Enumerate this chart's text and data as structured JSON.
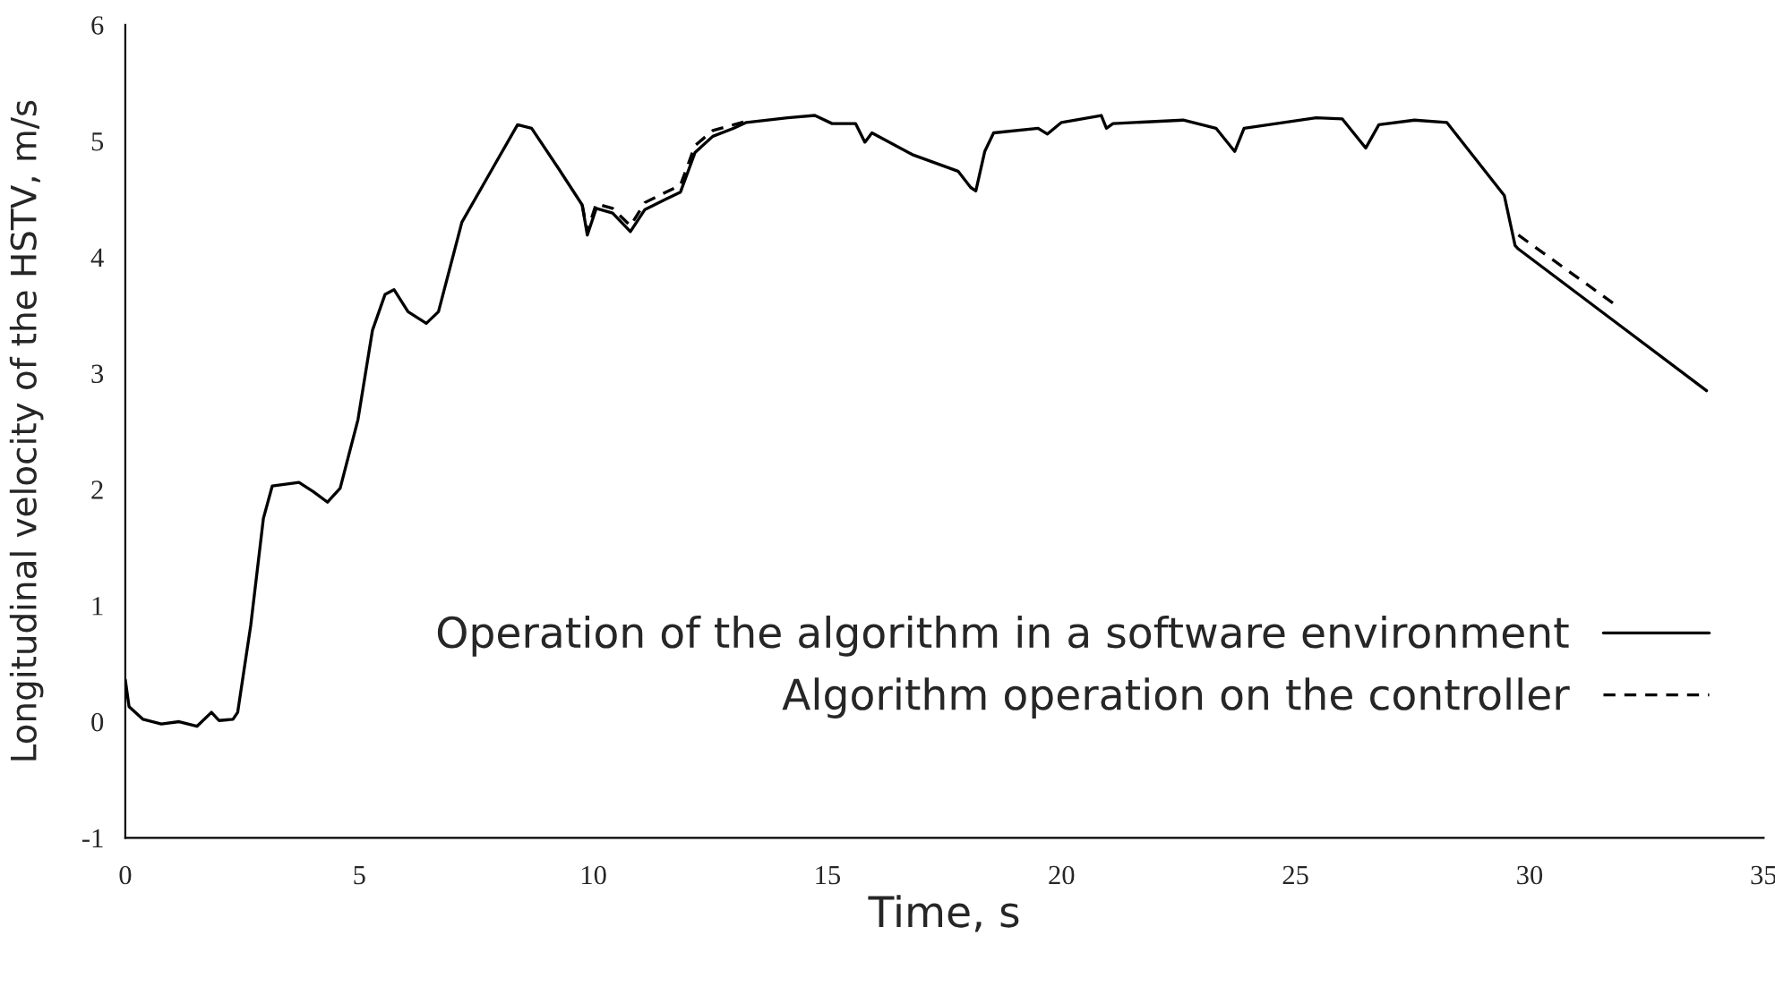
{
  "chart_data": {
    "type": "line",
    "xlabel": "Time, s",
    "ylabel": "Longitudinal velocity of the HSTV, m/s",
    "xlim": [
      0,
      35
    ],
    "xticks": [
      0,
      5,
      10,
      15,
      20,
      25,
      30,
      35
    ],
    "ylim": [
      -1,
      6
    ],
    "yticks": [
      -1,
      0,
      1,
      2,
      3,
      4,
      5,
      6
    ],
    "grid": false,
    "legend": "bottom right",
    "marker": "none",
    "series": [
      {
        "name": "Operation of the algorithm in a software environment",
        "color": "#000000",
        "line_style": "solid",
        "x": [
          0,
          0.08,
          0.38,
          0.77,
          1.15,
          1.53,
          1.84,
          2.0,
          2.3,
          2.4,
          2.68,
          2.95,
          3.14,
          3.71,
          4.02,
          4.32,
          4.59,
          4.97,
          5.28,
          5.55,
          5.74,
          6.04,
          6.43,
          6.69,
          7.19,
          7.84,
          8.38,
          8.68,
          9.26,
          9.76,
          9.87,
          10.06,
          10.41,
          10.79,
          11.1,
          11.55,
          11.86,
          12.17,
          12.55,
          13.0,
          13.27,
          14.15,
          14.73,
          15.1,
          15.6,
          15.8,
          15.95,
          16.83,
          17.79,
          18.06,
          18.17,
          18.36,
          18.55,
          19.5,
          19.7,
          20.0,
          20.85,
          20.96,
          21.1,
          22.6,
          23.3,
          23.7,
          23.9,
          25.44,
          26.0,
          26.5,
          26.78,
          27.54,
          28.23,
          29.46,
          29.69,
          29.76,
          33.78
        ],
        "values": [
          0.36,
          0.13,
          0.02,
          -0.02,
          0,
          -0.04,
          0.08,
          0.01,
          0.02,
          0.08,
          0.83,
          1.75,
          2.03,
          2.06,
          1.98,
          1.89,
          2.01,
          2.6,
          3.37,
          3.68,
          3.72,
          3.53,
          3.43,
          3.53,
          4.3,
          4.76,
          5.14,
          5.11,
          4.76,
          4.45,
          4.19,
          4.42,
          4.38,
          4.22,
          4.41,
          4.5,
          4.56,
          4.9,
          5.04,
          5.11,
          5.16,
          5.2,
          5.22,
          5.15,
          5.15,
          4.99,
          5.07,
          4.88,
          4.74,
          4.6,
          4.57,
          4.91,
          5.07,
          5.11,
          5.06,
          5.16,
          5.22,
          5.11,
          5.15,
          5.18,
          5.11,
          4.91,
          5.11,
          5.2,
          5.19,
          4.94,
          5.14,
          5.18,
          5.16,
          4.53,
          4.1,
          4.07,
          2.85
        ]
      },
      {
        "name": "Algorithm operation on the controller",
        "color": "#000000",
        "line_style": "dashed",
        "x": [
          9.76,
          9.87,
          10.06,
          10.41,
          10.79,
          11.1,
          11.55,
          11.86,
          12.17,
          12.55,
          13.0,
          13.27,
          20.0,
          29.76,
          31.9
        ],
        "values": [
          4.45,
          4.22,
          4.46,
          4.42,
          4.27,
          4.47,
          4.56,
          4.62,
          4.96,
          5.09,
          5.14,
          5.17,
          null,
          4.19,
          3.57
        ]
      }
    ]
  }
}
